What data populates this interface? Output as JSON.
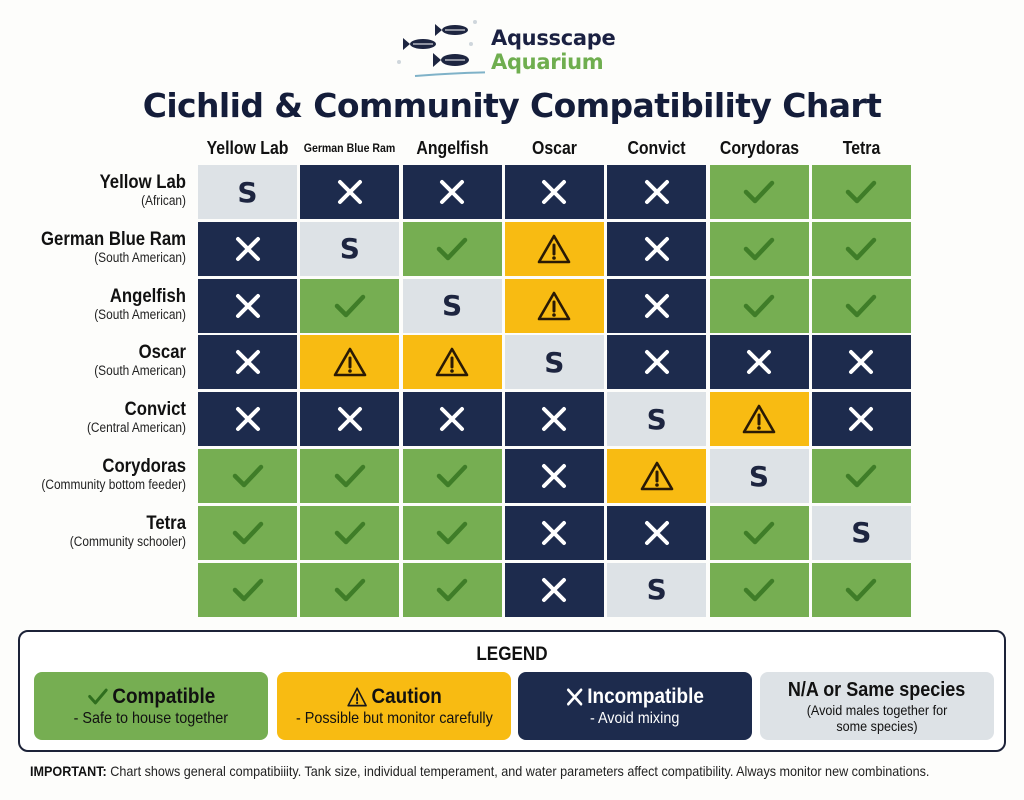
{
  "brand": {
    "line1": "Aqusscape",
    "line2": "Aquarium",
    "logo_icon": "fish-icon"
  },
  "title": "Cichlid & Community Compatibility Chart",
  "columns": [
    "Yellow Lab",
    "German Blue Ram",
    "Angelfish",
    "Oscar",
    "Convict",
    "Corydoras",
    "Tetra"
  ],
  "rows": [
    {
      "name": "Yellow Lab",
      "sub": "(African)"
    },
    {
      "name": "German Blue Ram",
      "sub": "(South American)"
    },
    {
      "name": "Angelfish",
      "sub": "(South American)"
    },
    {
      "name": "Oscar",
      "sub": "(South American)"
    },
    {
      "name": "Convict",
      "sub": "(Central American)"
    },
    {
      "name": "Corydoras",
      "sub": "(Community bottom feeder)"
    },
    {
      "name": "Tetra",
      "sub": "(Community schooler)"
    },
    {
      "name": "",
      "sub": ""
    }
  ],
  "symbols": {
    "same": "S"
  },
  "colors": {
    "compatible": "#76ae52",
    "caution": "#f8bb12",
    "incompatible": "#1d2b4d",
    "same": "#dde2e6"
  },
  "chart_data": {
    "type": "table",
    "title": "Cichlid & Community Compatibility Chart",
    "columns": [
      "Yellow Lab",
      "German Blue Ram",
      "Angelfish",
      "Oscar",
      "Convict",
      "Corydoras",
      "Tetra"
    ],
    "row_labels": [
      "Yellow Lab",
      "German Blue Ram",
      "Angelfish",
      "Oscar",
      "Convict",
      "Corydoras",
      "Tetra",
      ""
    ],
    "codes": {
      "ok": "Compatible",
      "warn": "Caution",
      "no": "Incompatible",
      "same": "N/A or Same species"
    },
    "matrix": [
      [
        "same",
        "no",
        "no",
        "no",
        "no",
        "ok",
        "ok"
      ],
      [
        "no",
        "same",
        "ok",
        "warn",
        "no",
        "ok",
        "ok"
      ],
      [
        "no",
        "ok",
        "same",
        "warn",
        "no",
        "ok",
        "ok"
      ],
      [
        "no",
        "warn",
        "warn",
        "same",
        "no",
        "no",
        "no"
      ],
      [
        "no",
        "no",
        "no",
        "no",
        "same",
        "warn",
        "no"
      ],
      [
        "ok",
        "ok",
        "ok",
        "no",
        "warn",
        "same",
        "ok"
      ],
      [
        "ok",
        "ok",
        "ok",
        "no",
        "no",
        "ok",
        "same"
      ],
      [
        "ok",
        "ok",
        "ok",
        "no",
        "same",
        "ok",
        "ok"
      ]
    ]
  },
  "legend": {
    "title": "LEGEND",
    "items": [
      {
        "key": "ok",
        "icon": "check-icon",
        "label": "Compatible",
        "desc": "- Safe to house together"
      },
      {
        "key": "warn",
        "icon": "warning-icon",
        "label": "Caution",
        "desc": "- Possible but monitor carefully"
      },
      {
        "key": "no",
        "icon": "x-icon",
        "label": "Incompatible",
        "desc": "- Avoid mixing"
      },
      {
        "key": "same",
        "icon": "",
        "label": "N/A or Same species",
        "desc": "(Avoid males together for some species)"
      }
    ]
  },
  "note": {
    "label": "IMPORTANT:",
    "text": " Chart shows general compatibiiity. Tank size, individual temperament, and water parameters affect compatibility. Always monitor new combinations."
  }
}
